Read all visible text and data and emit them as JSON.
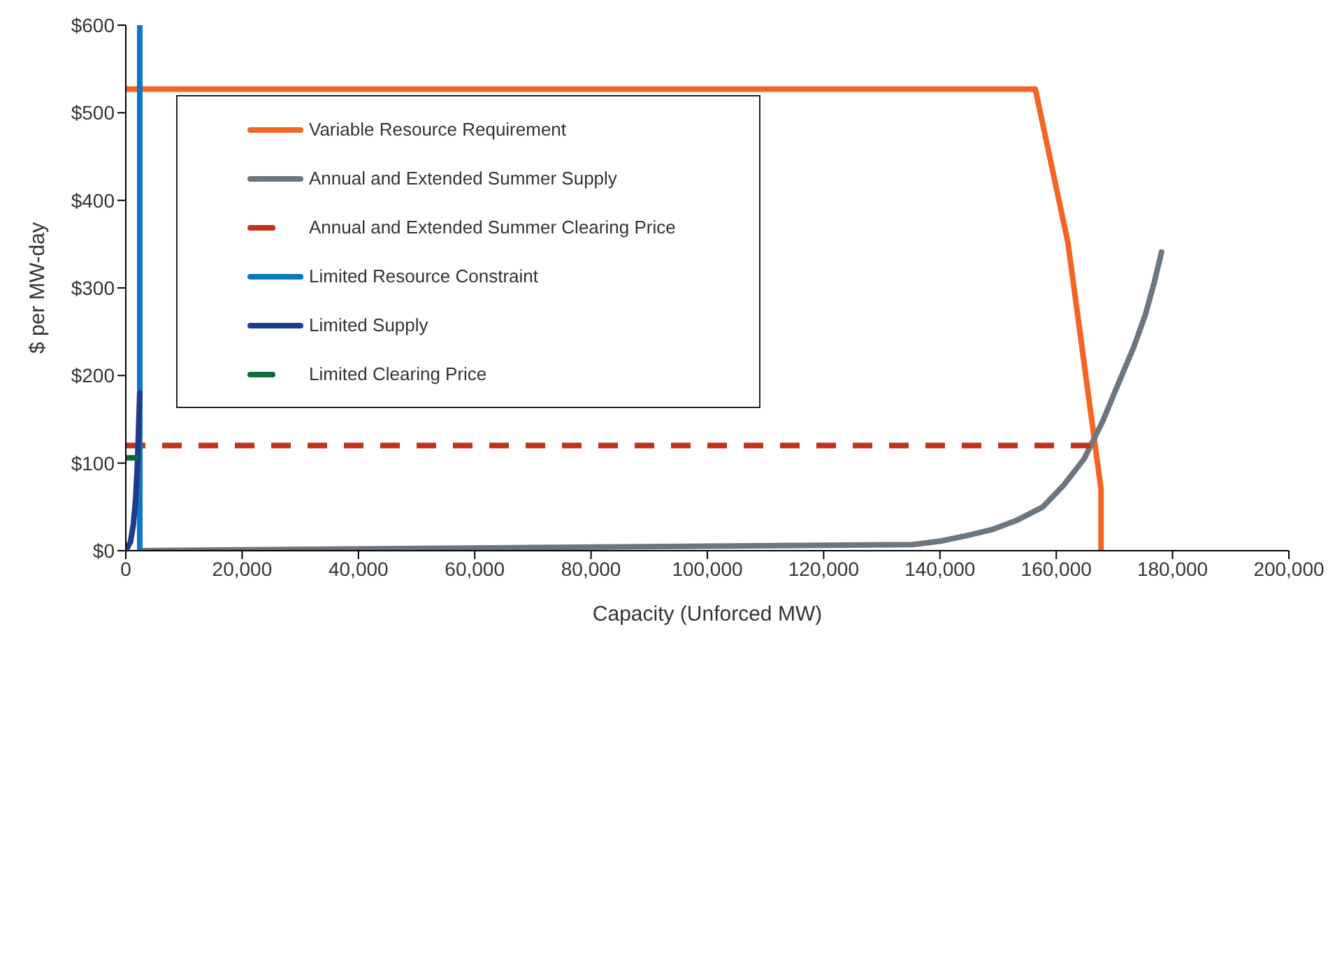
{
  "chart_data": {
    "type": "line",
    "xlabel": "Capacity (Unforced MW)",
    "ylabel": "$ per MW-day",
    "xlim": [
      0,
      200000
    ],
    "xticks": [
      {
        "value": 0,
        "label": "0"
      },
      {
        "value": 20000,
        "label": "20,000"
      },
      {
        "value": 40000,
        "label": "40,000"
      },
      {
        "value": 60000,
        "label": "60,000"
      },
      {
        "value": 80000,
        "label": "80,000"
      },
      {
        "value": 100000,
        "label": "100,000"
      },
      {
        "value": 120000,
        "label": "120,000"
      },
      {
        "value": 140000,
        "label": "140,000"
      },
      {
        "value": 160000,
        "label": "160,000"
      },
      {
        "value": 180000,
        "label": "180,000"
      },
      {
        "value": 200000,
        "label": "200,000"
      }
    ],
    "ylim": [
      0,
      600
    ],
    "yticks": [
      {
        "value": 0,
        "label": "$0"
      },
      {
        "value": 100,
        "label": "$100"
      },
      {
        "value": 200,
        "label": "$200"
      },
      {
        "value": 300,
        "label": "$300"
      },
      {
        "value": 400,
        "label": "$400"
      },
      {
        "value": 500,
        "label": "$500"
      },
      {
        "value": 600,
        "label": "$600"
      }
    ],
    "grid": false,
    "legend": "top left",
    "marker": "none",
    "series": [
      {
        "name": "Variable Resource Requirement",
        "color": "#f26522",
        "line_style": "solid",
        "x": [
          0,
          156400,
          162000,
          167700,
          167700
        ],
        "values": [
          527,
          527,
          352,
          70,
          0
        ]
      },
      {
        "name": "Annual and Extended Summer Supply",
        "color": "#6d767e",
        "line_style": "solid",
        "x": [
          2400,
          135300,
          140100,
          144500,
          148900,
          153300,
          157700,
          161300,
          164800,
          168000,
          171000,
          173300,
          175300,
          176800,
          178100
        ],
        "values": [
          0,
          7,
          11,
          17,
          24,
          35,
          50,
          75,
          105,
          148,
          196,
          232,
          269,
          305,
          341
        ]
      },
      {
        "name": "Annual and Extended Summer Clearing Price",
        "color": "#c1311c",
        "line_style": "dashed",
        "x": [
          0,
          166200
        ],
        "values": [
          120,
          120
        ]
      },
      {
        "name": "Limited Resource Constraint",
        "color": "#0a78c2",
        "line_style": "solid",
        "x": [
          2400,
          2400
        ],
        "values": [
          0,
          600
        ]
      },
      {
        "name": "Limited Supply",
        "color": "#1f3c8c",
        "line_style": "solid",
        "x": [
          0,
          800,
          1300,
          1700,
          2000,
          2400
        ],
        "values": [
          0,
          10,
          30,
          60,
          100,
          180
        ]
      },
      {
        "name": "Limited Clearing Price",
        "color": "#0e6a3a",
        "line_style": "dashed",
        "x": [
          0,
          2100
        ],
        "values": [
          106,
          106
        ]
      }
    ]
  }
}
